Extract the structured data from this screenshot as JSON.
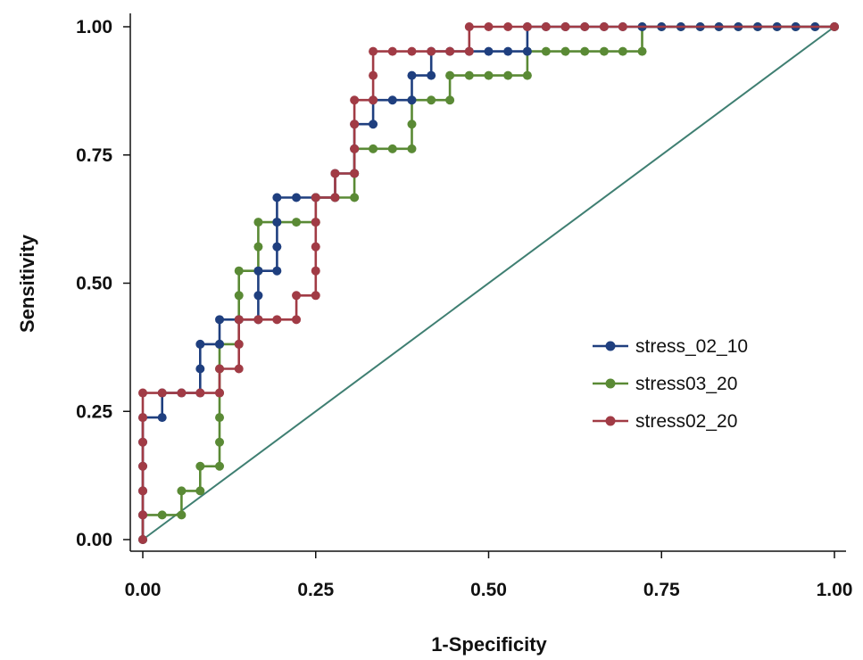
{
  "chart_data": {
    "type": "line",
    "xlabel": "1-Specificity",
    "ylabel": "Sensitivity",
    "xlim": [
      0,
      1
    ],
    "ylim": [
      0,
      1
    ],
    "x_ticks": [
      "0.00",
      "0.25",
      "0.50",
      "0.75",
      "1.00"
    ],
    "y_ticks": [
      "0.00",
      "0.25",
      "0.50",
      "0.75",
      "1.00"
    ],
    "grid": false,
    "legend_position": "right-middle",
    "reference_line": {
      "from": [
        0,
        0
      ],
      "to": [
        1,
        1
      ],
      "color": "#3f7f72"
    },
    "series": [
      {
        "name": "stress_02_10",
        "color": "#1f3f7f",
        "points": [
          [
            0,
            0
          ],
          [
            0,
            0.048
          ],
          [
            0,
            0.095
          ],
          [
            0,
            0.143
          ],
          [
            0,
            0.19
          ],
          [
            0,
            0.238
          ],
          [
            0.028,
            0.238
          ],
          [
            0.028,
            0.286
          ],
          [
            0.056,
            0.286
          ],
          [
            0.083,
            0.286
          ],
          [
            0.083,
            0.333
          ],
          [
            0.083,
            0.381
          ],
          [
            0.111,
            0.381
          ],
          [
            0.111,
            0.429
          ],
          [
            0.139,
            0.429
          ],
          [
            0.167,
            0.429
          ],
          [
            0.167,
            0.476
          ],
          [
            0.167,
            0.524
          ],
          [
            0.194,
            0.524
          ],
          [
            0.194,
            0.571
          ],
          [
            0.194,
            0.619
          ],
          [
            0.194,
            0.667
          ],
          [
            0.222,
            0.667
          ],
          [
            0.25,
            0.667
          ],
          [
            0.278,
            0.667
          ],
          [
            0.278,
            0.714
          ],
          [
            0.306,
            0.714
          ],
          [
            0.306,
            0.762
          ],
          [
            0.306,
            0.81
          ],
          [
            0.333,
            0.81
          ],
          [
            0.333,
            0.857
          ],
          [
            0.361,
            0.857
          ],
          [
            0.389,
            0.857
          ],
          [
            0.389,
            0.905
          ],
          [
            0.417,
            0.905
          ],
          [
            0.417,
            0.952
          ],
          [
            0.444,
            0.952
          ],
          [
            0.472,
            0.952
          ],
          [
            0.5,
            0.952
          ],
          [
            0.528,
            0.952
          ],
          [
            0.556,
            0.952
          ],
          [
            0.556,
            1
          ],
          [
            0.583,
            1
          ],
          [
            0.611,
            1
          ],
          [
            0.639,
            1
          ],
          [
            0.667,
            1
          ],
          [
            0.694,
            1
          ],
          [
            0.722,
            1
          ],
          [
            0.75,
            1
          ],
          [
            0.778,
            1
          ],
          [
            0.806,
            1
          ],
          [
            0.833,
            1
          ],
          [
            0.861,
            1
          ],
          [
            0.889,
            1
          ],
          [
            0.917,
            1
          ],
          [
            0.944,
            1
          ],
          [
            0.972,
            1
          ],
          [
            1,
            1
          ]
        ]
      },
      {
        "name": "stress03_20",
        "color": "#5a8a35",
        "points": [
          [
            0,
            0
          ],
          [
            0,
            0.048
          ],
          [
            0.028,
            0.048
          ],
          [
            0.056,
            0.048
          ],
          [
            0.056,
            0.095
          ],
          [
            0.083,
            0.095
          ],
          [
            0.083,
            0.143
          ],
          [
            0.111,
            0.143
          ],
          [
            0.111,
            0.19
          ],
          [
            0.111,
            0.238
          ],
          [
            0.111,
            0.286
          ],
          [
            0.111,
            0.333
          ],
          [
            0.111,
            0.381
          ],
          [
            0.139,
            0.381
          ],
          [
            0.139,
            0.429
          ],
          [
            0.139,
            0.476
          ],
          [
            0.139,
            0.524
          ],
          [
            0.167,
            0.524
          ],
          [
            0.167,
            0.571
          ],
          [
            0.167,
            0.619
          ],
          [
            0.194,
            0.619
          ],
          [
            0.222,
            0.619
          ],
          [
            0.25,
            0.619
          ],
          [
            0.25,
            0.667
          ],
          [
            0.278,
            0.667
          ],
          [
            0.306,
            0.667
          ],
          [
            0.306,
            0.714
          ],
          [
            0.306,
            0.762
          ],
          [
            0.333,
            0.762
          ],
          [
            0.361,
            0.762
          ],
          [
            0.389,
            0.762
          ],
          [
            0.389,
            0.81
          ],
          [
            0.389,
            0.857
          ],
          [
            0.417,
            0.857
          ],
          [
            0.444,
            0.857
          ],
          [
            0.444,
            0.905
          ],
          [
            0.472,
            0.905
          ],
          [
            0.5,
            0.905
          ],
          [
            0.528,
            0.905
          ],
          [
            0.556,
            0.905
          ],
          [
            0.556,
            0.952
          ],
          [
            0.583,
            0.952
          ],
          [
            0.611,
            0.952
          ],
          [
            0.639,
            0.952
          ],
          [
            0.667,
            0.952
          ],
          [
            0.694,
            0.952
          ],
          [
            0.722,
            0.952
          ],
          [
            0.722,
            1
          ],
          [
            0.75,
            1
          ],
          [
            0.778,
            1
          ],
          [
            0.806,
            1
          ],
          [
            0.833,
            1
          ],
          [
            0.861,
            1
          ],
          [
            0.889,
            1
          ],
          [
            0.917,
            1
          ],
          [
            0.944,
            1
          ],
          [
            0.972,
            1
          ],
          [
            1,
            1
          ]
        ]
      },
      {
        "name": "stress02_20",
        "color": "#a13b45",
        "points": [
          [
            0,
            0
          ],
          [
            0,
            0.048
          ],
          [
            0,
            0.095
          ],
          [
            0,
            0.143
          ],
          [
            0,
            0.19
          ],
          [
            0,
            0.238
          ],
          [
            0,
            0.286
          ],
          [
            0.028,
            0.286
          ],
          [
            0.056,
            0.286
          ],
          [
            0.083,
            0.286
          ],
          [
            0.111,
            0.286
          ],
          [
            0.111,
            0.333
          ],
          [
            0.139,
            0.333
          ],
          [
            0.139,
            0.381
          ],
          [
            0.139,
            0.429
          ],
          [
            0.167,
            0.429
          ],
          [
            0.194,
            0.429
          ],
          [
            0.222,
            0.429
          ],
          [
            0.222,
            0.476
          ],
          [
            0.25,
            0.476
          ],
          [
            0.25,
            0.524
          ],
          [
            0.25,
            0.571
          ],
          [
            0.25,
            0.619
          ],
          [
            0.25,
            0.667
          ],
          [
            0.278,
            0.667
          ],
          [
            0.278,
            0.714
          ],
          [
            0.306,
            0.714
          ],
          [
            0.306,
            0.762
          ],
          [
            0.306,
            0.81
          ],
          [
            0.306,
            0.857
          ],
          [
            0.333,
            0.857
          ],
          [
            0.333,
            0.905
          ],
          [
            0.333,
            0.952
          ],
          [
            0.361,
            0.952
          ],
          [
            0.389,
            0.952
          ],
          [
            0.417,
            0.952
          ],
          [
            0.444,
            0.952
          ],
          [
            0.472,
            0.952
          ],
          [
            0.472,
            1
          ],
          [
            0.5,
            1
          ],
          [
            0.528,
            1
          ],
          [
            0.556,
            1
          ],
          [
            0.583,
            1
          ],
          [
            0.611,
            1
          ],
          [
            0.639,
            1
          ],
          [
            0.667,
            1
          ],
          [
            0.694,
            1
          ],
          [
            1,
            1
          ]
        ]
      }
    ]
  }
}
